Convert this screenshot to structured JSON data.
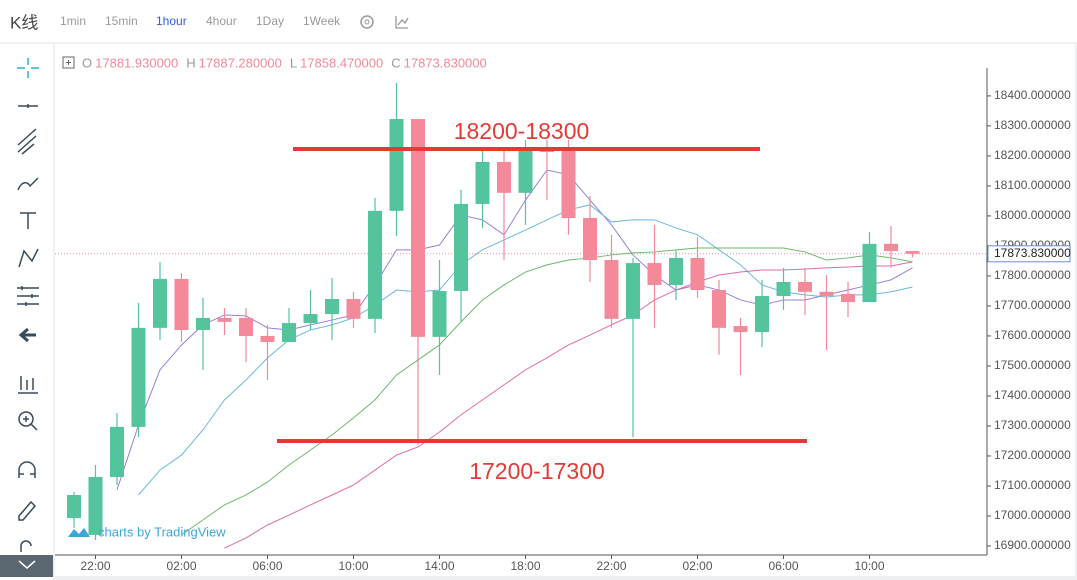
{
  "toolbar": {
    "title": "K线",
    "intervals": [
      "1min",
      "15min",
      "1hour",
      "4hour",
      "1Day",
      "1Week"
    ],
    "active": "1hour"
  },
  "ohlc_header": [
    {
      "key": "O",
      "value": "17881.930000"
    },
    {
      "key": "H",
      "value": "17887.280000"
    },
    {
      "key": "L",
      "value": "17858.470000"
    },
    {
      "key": "C",
      "value": "17873.830000"
    }
  ],
  "watermark": "charts by TradingView",
  "chart_data": {
    "type": "candlestick",
    "categories": [
      null,
      "22:00",
      null,
      null,
      null,
      "02:00",
      null,
      null,
      null,
      "06:00",
      null,
      null,
      null,
      "10:00",
      null,
      null,
      null,
      "14:00",
      null,
      null,
      null,
      "18:00",
      null,
      null,
      null,
      "22:00",
      null,
      null,
      null,
      "02:00",
      null,
      null,
      null,
      "06:00",
      null,
      null,
      null,
      "10:00",
      null,
      null
    ],
    "open": [
      16993,
      16937,
      17130,
      17297,
      17627,
      17790,
      17620,
      17660,
      17660,
      17600,
      17580,
      17643,
      17673,
      17723,
      17657,
      18017,
      18323,
      17597,
      17750,
      18040,
      18180,
      18077,
      18223,
      18223,
      17993,
      17853,
      17657,
      17843,
      17770,
      17860,
      17753,
      17633,
      17613,
      17733,
      17780,
      17747,
      17740,
      17713,
      17907,
      17883
    ],
    "high": [
      17080,
      17170,
      17343,
      17710,
      17847,
      17810,
      17727,
      17693,
      17693,
      17637,
      17693,
      17753,
      17793,
      17747,
      18060,
      18443,
      18323,
      17853,
      18087,
      18227,
      18227,
      18253,
      18253,
      18253,
      18067,
      17937,
      17860,
      17970,
      17887,
      17930,
      17787,
      17660,
      17787,
      17827,
      17827,
      17803,
      17780,
      17947,
      17967,
      17883
    ],
    "low": [
      16960,
      16920,
      17103,
      17263,
      17587,
      17580,
      17487,
      17603,
      17513,
      17453,
      17580,
      17620,
      17587,
      17627,
      17610,
      17933,
      17237,
      17470,
      17647,
      17960,
      17853,
      17970,
      18053,
      17937,
      17780,
      17627,
      17263,
      17627,
      17720,
      17727,
      17537,
      17470,
      17563,
      17687,
      17670,
      17553,
      17663,
      17713,
      17827,
      17862
    ],
    "close": [
      17070,
      17130,
      17297,
      17627,
      17790,
      17620,
      17660,
      17647,
      17600,
      17580,
      17643,
      17673,
      17723,
      17657,
      18017,
      18323,
      17597,
      17750,
      18040,
      18180,
      18077,
      18223,
      18213,
      17993,
      17853,
      17657,
      17843,
      17770,
      17860,
      17753,
      17627,
      17613,
      17733,
      17780,
      17747,
      17733,
      17713,
      17907,
      17883,
      17874
    ],
    "up_color": "#53c49c",
    "down_color": "#f4899a",
    "series": [
      {
        "color": "#9a7fd6",
        "values": [
          null,
          null,
          17087,
          17303,
          17487,
          17570,
          17637,
          17670,
          17667,
          17627,
          17620,
          17637,
          17653,
          17670,
          17770,
          17887,
          17887,
          17903,
          18003,
          17987,
          17937,
          18053,
          18153,
          18137,
          18053,
          17970,
          17870,
          17803,
          17753,
          17770,
          17753,
          17720,
          17703,
          17720,
          17720,
          17737,
          17753,
          17770,
          17787,
          17827
        ]
      },
      {
        "color": "#6ab8e0",
        "values": [
          null,
          null,
          null,
          17070,
          17153,
          17203,
          17287,
          17387,
          17453,
          17527,
          17587,
          17620,
          17637,
          17660,
          17703,
          17753,
          17747,
          17753,
          17837,
          17887,
          17920,
          17953,
          17987,
          18020,
          18037,
          17980,
          17987,
          17987,
          17960,
          17937,
          17887,
          17837,
          17770,
          17747,
          17737,
          17730,
          17737,
          17737,
          17747,
          17763
        ]
      },
      {
        "color": "#6bb86b",
        "values": [
          null,
          null,
          null,
          null,
          null,
          16937,
          16987,
          17037,
          17070,
          17113,
          17170,
          17220,
          17270,
          17327,
          17387,
          17470,
          17520,
          17570,
          17647,
          17720,
          17770,
          17813,
          17837,
          17853,
          17860,
          17870,
          17877,
          17880,
          17887,
          17893,
          17893,
          17893,
          17893,
          17893,
          17880,
          17853,
          17860,
          17870,
          17860,
          17847
        ]
      },
      {
        "color": "#e06aa8",
        "values": [
          null,
          null,
          null,
          null,
          null,
          null,
          null,
          16893,
          16927,
          16970,
          17003,
          17037,
          17070,
          17103,
          17153,
          17203,
          17230,
          17280,
          17337,
          17387,
          17437,
          17487,
          17527,
          17570,
          17603,
          17637,
          17670,
          17720,
          17753,
          17780,
          17803,
          17813,
          17820,
          17820,
          17823,
          17827,
          17830,
          17833,
          17833,
          17847
        ]
      }
    ],
    "ylim": [
      16880,
      18493
    ],
    "yticks": [
      {
        "value": 16900,
        "label": "16900.000000"
      },
      {
        "value": 17000,
        "label": "17000.000000"
      },
      {
        "value": 17100,
        "label": "17100.000000"
      },
      {
        "value": 17200,
        "label": "17200.000000"
      },
      {
        "value": 17300,
        "label": "17300.000000"
      },
      {
        "value": 17400,
        "label": "17400.000000"
      },
      {
        "value": 17500,
        "label": "17500.000000"
      },
      {
        "value": 17600,
        "label": "17600.000000"
      },
      {
        "value": 17700,
        "label": "17700.000000"
      },
      {
        "value": 17800,
        "label": "17800.000000"
      },
      {
        "value": 17900,
        "label": "17900.000000"
      },
      {
        "value": 18000,
        "label": "18000.000000"
      },
      {
        "value": 18100,
        "label": "18100.000000"
      },
      {
        "value": 18200,
        "label": "18200.000000"
      },
      {
        "value": 18300,
        "label": "18300.000000"
      },
      {
        "value": 18400,
        "label": "18400.000000"
      }
    ],
    "last": {
      "value": 17873.83,
      "label": "17873.830000",
      "color": "#f4899a"
    },
    "annotations": [
      {
        "text": "18200-18300",
        "value": 18223,
        "color": "#e53935"
      },
      {
        "text": "17200-17300",
        "value": 17250,
        "color": "#e53935"
      }
    ]
  }
}
